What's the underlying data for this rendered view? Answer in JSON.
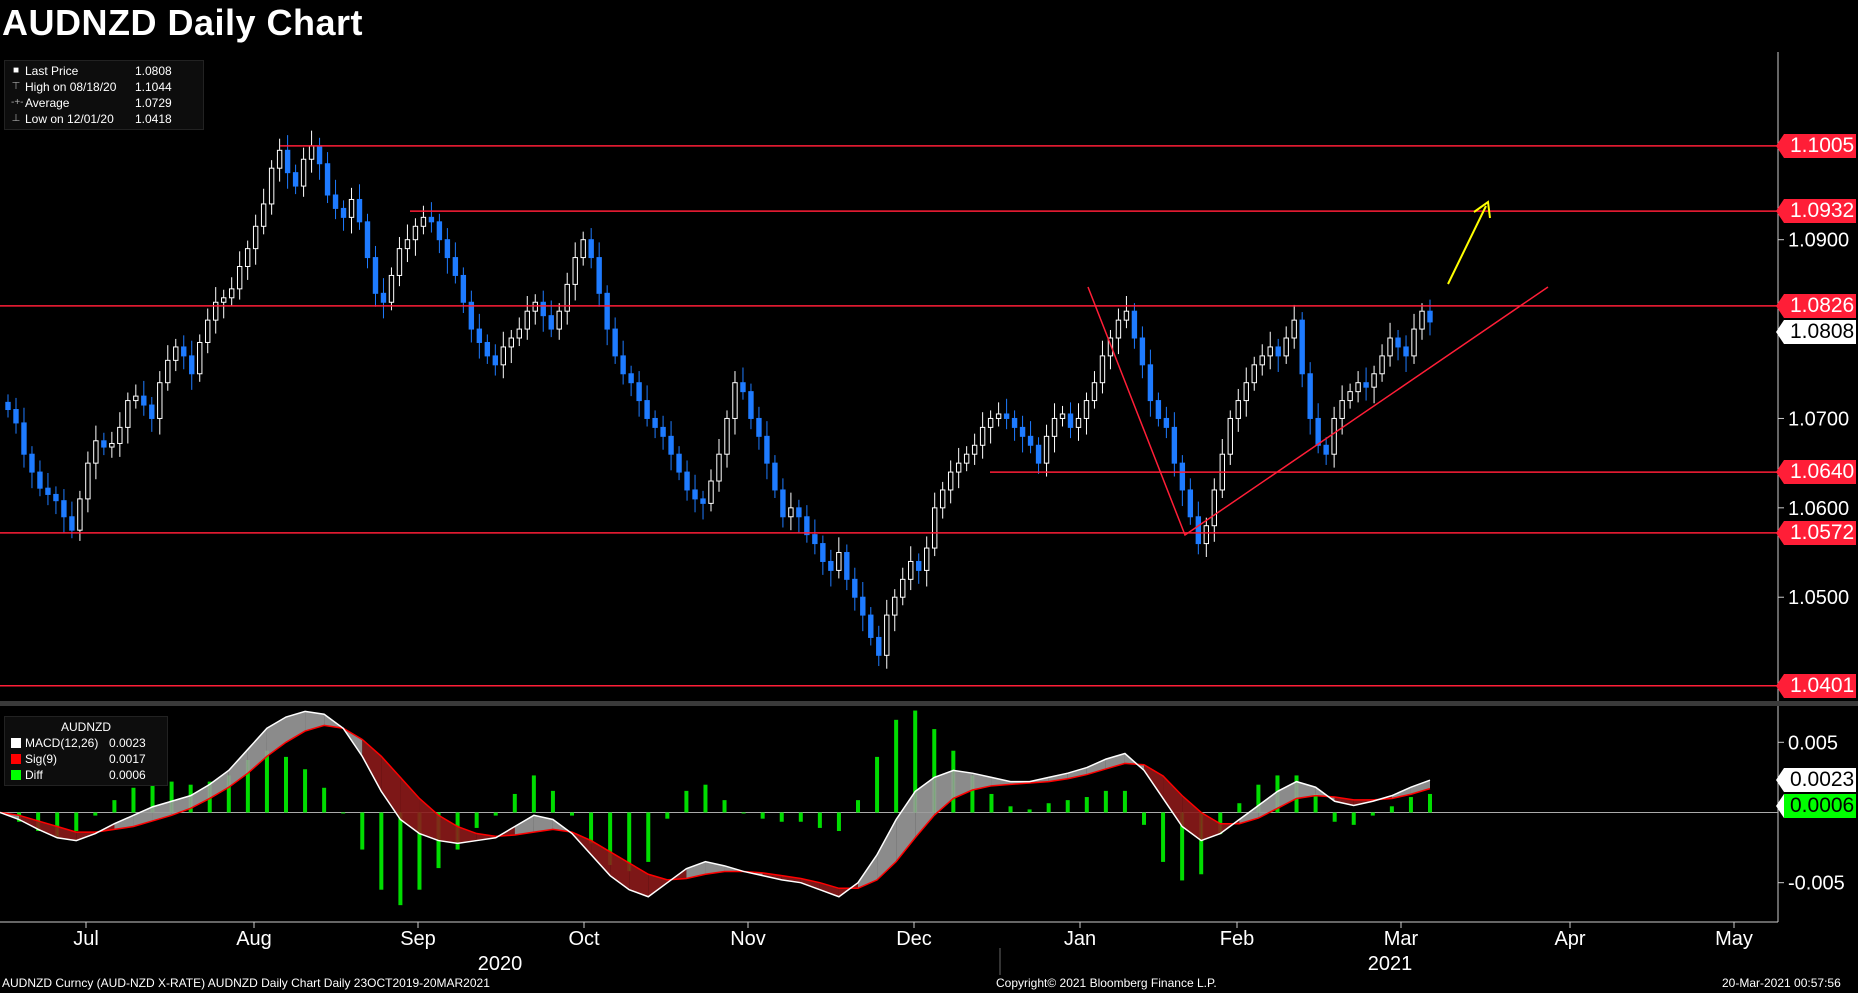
{
  "title": "AUDNZD Daily Chart",
  "legend": {
    "rows": [
      {
        "label": "Last Price",
        "value": "1.0808",
        "marker": "■"
      },
      {
        "label": "High on 08/18/20",
        "value": "1.1044",
        "marker": "⊤"
      },
      {
        "label": "Average",
        "value": "1.0729",
        "marker": "-+-"
      },
      {
        "label": "Low on 12/01/20",
        "value": "1.0418",
        "marker": "⊥"
      }
    ]
  },
  "macd_legend": {
    "title": "AUDNZD",
    "rows": [
      {
        "label": "MACD(12,26)",
        "value": "0.0023",
        "color": "#ffffff"
      },
      {
        "label": "Sig(9)",
        "value": "0.0017",
        "color": "#ff0000"
      },
      {
        "label": "Diff",
        "value": "0.0006",
        "color": "#00ff00"
      }
    ]
  },
  "price_axis_ticks": [
    "1.0900",
    "1.0700",
    "1.0600",
    "1.0500"
  ],
  "price_levels": [
    {
      "label": "1.1005",
      "value": 1.1005
    },
    {
      "label": "1.0932",
      "value": 1.0932
    },
    {
      "label": "1.0826",
      "value": 1.0826
    },
    {
      "label": "1.0640",
      "value": 1.064
    },
    {
      "label": "1.0572",
      "value": 1.0572
    },
    {
      "label": "1.0401",
      "value": 1.0401
    }
  ],
  "last_price_label": "1.0808",
  "macd_axis_ticks": [
    "0.005",
    "-0.005"
  ],
  "macd_value_label": "0.0023",
  "diff_value_label": "0.0006",
  "x_months": [
    "Jul",
    "Aug",
    "Sep",
    "Oct",
    "Nov",
    "Dec",
    "Jan",
    "Feb",
    "Mar",
    "Apr",
    "May"
  ],
  "x_years": [
    "2020",
    "2021"
  ],
  "footer": {
    "left": "AUDNZD Curncy (AUD-NZD X-RATE) AUDNZD Daily Chart  Daily 23OCT2019-20MAR2021",
    "center": "Copyright© 2021 Bloomberg Finance L.P.",
    "right": "20-Mar-2021 00:57:56"
  },
  "colors": {
    "up": "#ffffff",
    "down": "#1e7bff",
    "level": "#ff1e37",
    "arrow": "#ffff00",
    "macd_fill_up": "#9a9a9a",
    "macd_fill_down": "#8b1a1a",
    "hist": "#00dd00"
  },
  "chart_data": [
    {
      "type": "candlestick",
      "title": "AUDNZD Daily Chart",
      "ylim": [
        1.0385,
        1.111
      ],
      "x_months": [
        "Jul",
        "Aug",
        "Sep",
        "Oct",
        "Nov",
        "Dec",
        "Jan",
        "Feb",
        "Mar",
        "Apr",
        "May"
      ],
      "horizontal_levels": [
        1.1005,
        1.0932,
        1.0826,
        1.064,
        1.0572,
        1.0401
      ],
      "last_price": 1.0808,
      "high": 1.1044,
      "average": 1.0729,
      "low": 1.0418,
      "closes": [
        1.071,
        1.0695,
        1.066,
        1.064,
        1.0622,
        1.0615,
        1.0608,
        1.059,
        1.0575,
        1.061,
        1.065,
        1.0675,
        1.0668,
        1.0672,
        1.069,
        1.072,
        1.0725,
        1.0715,
        1.07,
        1.074,
        1.0765,
        1.078,
        1.077,
        1.075,
        1.0785,
        1.081,
        1.083,
        1.0835,
        1.0845,
        1.087,
        1.089,
        1.0915,
        1.094,
        1.098,
        1.1,
        1.0975,
        1.096,
        1.099,
        1.1005,
        1.0985,
        1.095,
        1.0935,
        1.0925,
        1.0945,
        1.092,
        1.088,
        1.084,
        1.083,
        1.086,
        1.089,
        1.09,
        1.0915,
        1.0925,
        1.092,
        1.09,
        1.088,
        1.086,
        1.083,
        1.08,
        1.0785,
        1.077,
        1.076,
        1.078,
        1.079,
        1.08,
        1.082,
        1.083,
        1.0815,
        1.08,
        1.082,
        1.085,
        1.088,
        1.09,
        1.088,
        1.084,
        1.08,
        1.077,
        1.075,
        1.074,
        1.072,
        1.07,
        1.069,
        1.068,
        1.066,
        1.064,
        1.062,
        1.061,
        1.0605,
        1.063,
        1.066,
        1.07,
        1.074,
        1.073,
        1.07,
        1.068,
        1.065,
        1.062,
        1.059,
        1.06,
        1.059,
        1.057,
        1.056,
        1.054,
        1.053,
        1.055,
        1.052,
        1.05,
        1.048,
        1.0455,
        1.0435,
        1.048,
        1.05,
        1.052,
        1.054,
        1.053,
        1.0555,
        1.06,
        1.062,
        1.064,
        1.065,
        1.066,
        1.067,
        1.069,
        1.07,
        1.0705,
        1.07,
        1.069,
        1.068,
        1.067,
        1.065,
        1.068,
        1.07,
        1.0705,
        1.069,
        1.07,
        1.072,
        1.074,
        1.077,
        1.079,
        1.081,
        1.082,
        1.079,
        1.076,
        1.072,
        1.07,
        1.069,
        1.065,
        1.062,
        1.059,
        1.056,
        1.058,
        1.062,
        1.066,
        1.07,
        1.072,
        1.074,
        1.076,
        1.077,
        1.078,
        1.077,
        1.079,
        1.081,
        1.075,
        1.07,
        1.067,
        1.066,
        1.07,
        1.072,
        1.073,
        1.074,
        1.0735,
        1.075,
        1.077,
        1.079,
        1.078,
        1.077,
        1.08,
        1.082,
        1.0808
      ]
    },
    {
      "type": "macd",
      "title": "AUDNZD",
      "ylim": [
        -0.0078,
        0.0073
      ],
      "series": [
        {
          "name": "MACD(12,26)",
          "last": 0.0023
        },
        {
          "name": "Sig(9)",
          "last": 0.0017
        },
        {
          "name": "Diff",
          "last": 0.0006
        }
      ],
      "macd": [
        0.0,
        -0.0005,
        -0.0012,
        -0.0018,
        -0.002,
        -0.0015,
        -0.0008,
        -0.0002,
        0.0004,
        0.0008,
        0.0012,
        0.002,
        0.003,
        0.0045,
        0.006,
        0.0068,
        0.0072,
        0.007,
        0.006,
        0.004,
        0.0015,
        -0.0005,
        -0.0015,
        -0.002,
        -0.0022,
        -0.002,
        -0.0018,
        -0.001,
        -0.0002,
        -0.0005,
        -0.0015,
        -0.003,
        -0.0045,
        -0.0055,
        -0.006,
        -0.005,
        -0.004,
        -0.0035,
        -0.0038,
        -0.0042,
        -0.0045,
        -0.0048,
        -0.005,
        -0.0055,
        -0.006,
        -0.005,
        -0.003,
        -0.0005,
        0.0015,
        0.0025,
        0.003,
        0.0028,
        0.0025,
        0.0022,
        0.0022,
        0.0025,
        0.0028,
        0.0032,
        0.0038,
        0.0042,
        0.003,
        0.001,
        -0.001,
        -0.002,
        -0.0015,
        -0.0005,
        0.0005,
        0.0015,
        0.0022,
        0.0018,
        0.0008,
        0.0005,
        0.0008,
        0.0012,
        0.0018,
        0.0023
      ],
      "signal": [
        0.0,
        -0.0002,
        -0.0006,
        -0.001,
        -0.0014,
        -0.0014,
        -0.0012,
        -0.001,
        -0.0006,
        -0.0002,
        0.0003,
        0.001,
        0.0018,
        0.0028,
        0.004,
        0.005,
        0.0058,
        0.0062,
        0.006,
        0.0052,
        0.004,
        0.0025,
        0.001,
        -0.0002,
        -0.001,
        -0.0015,
        -0.0017,
        -0.0016,
        -0.0014,
        -0.0012,
        -0.0014,
        -0.002,
        -0.0028,
        -0.0036,
        -0.0044,
        -0.0048,
        -0.0047,
        -0.0044,
        -0.0042,
        -0.0042,
        -0.0043,
        -0.0045,
        -0.0047,
        -0.005,
        -0.0054,
        -0.0054,
        -0.0048,
        -0.0035,
        -0.0018,
        -0.0002,
        0.001,
        0.0016,
        0.0019,
        0.002,
        0.0021,
        0.0022,
        0.0024,
        0.0027,
        0.0031,
        0.0035,
        0.0034,
        0.0026,
        0.0012,
        0.0,
        -0.0008,
        -0.0008,
        -0.0004,
        0.0003,
        0.001,
        0.0012,
        0.0011,
        0.0009,
        0.0009,
        0.001,
        0.0013,
        0.0017
      ]
    }
  ]
}
